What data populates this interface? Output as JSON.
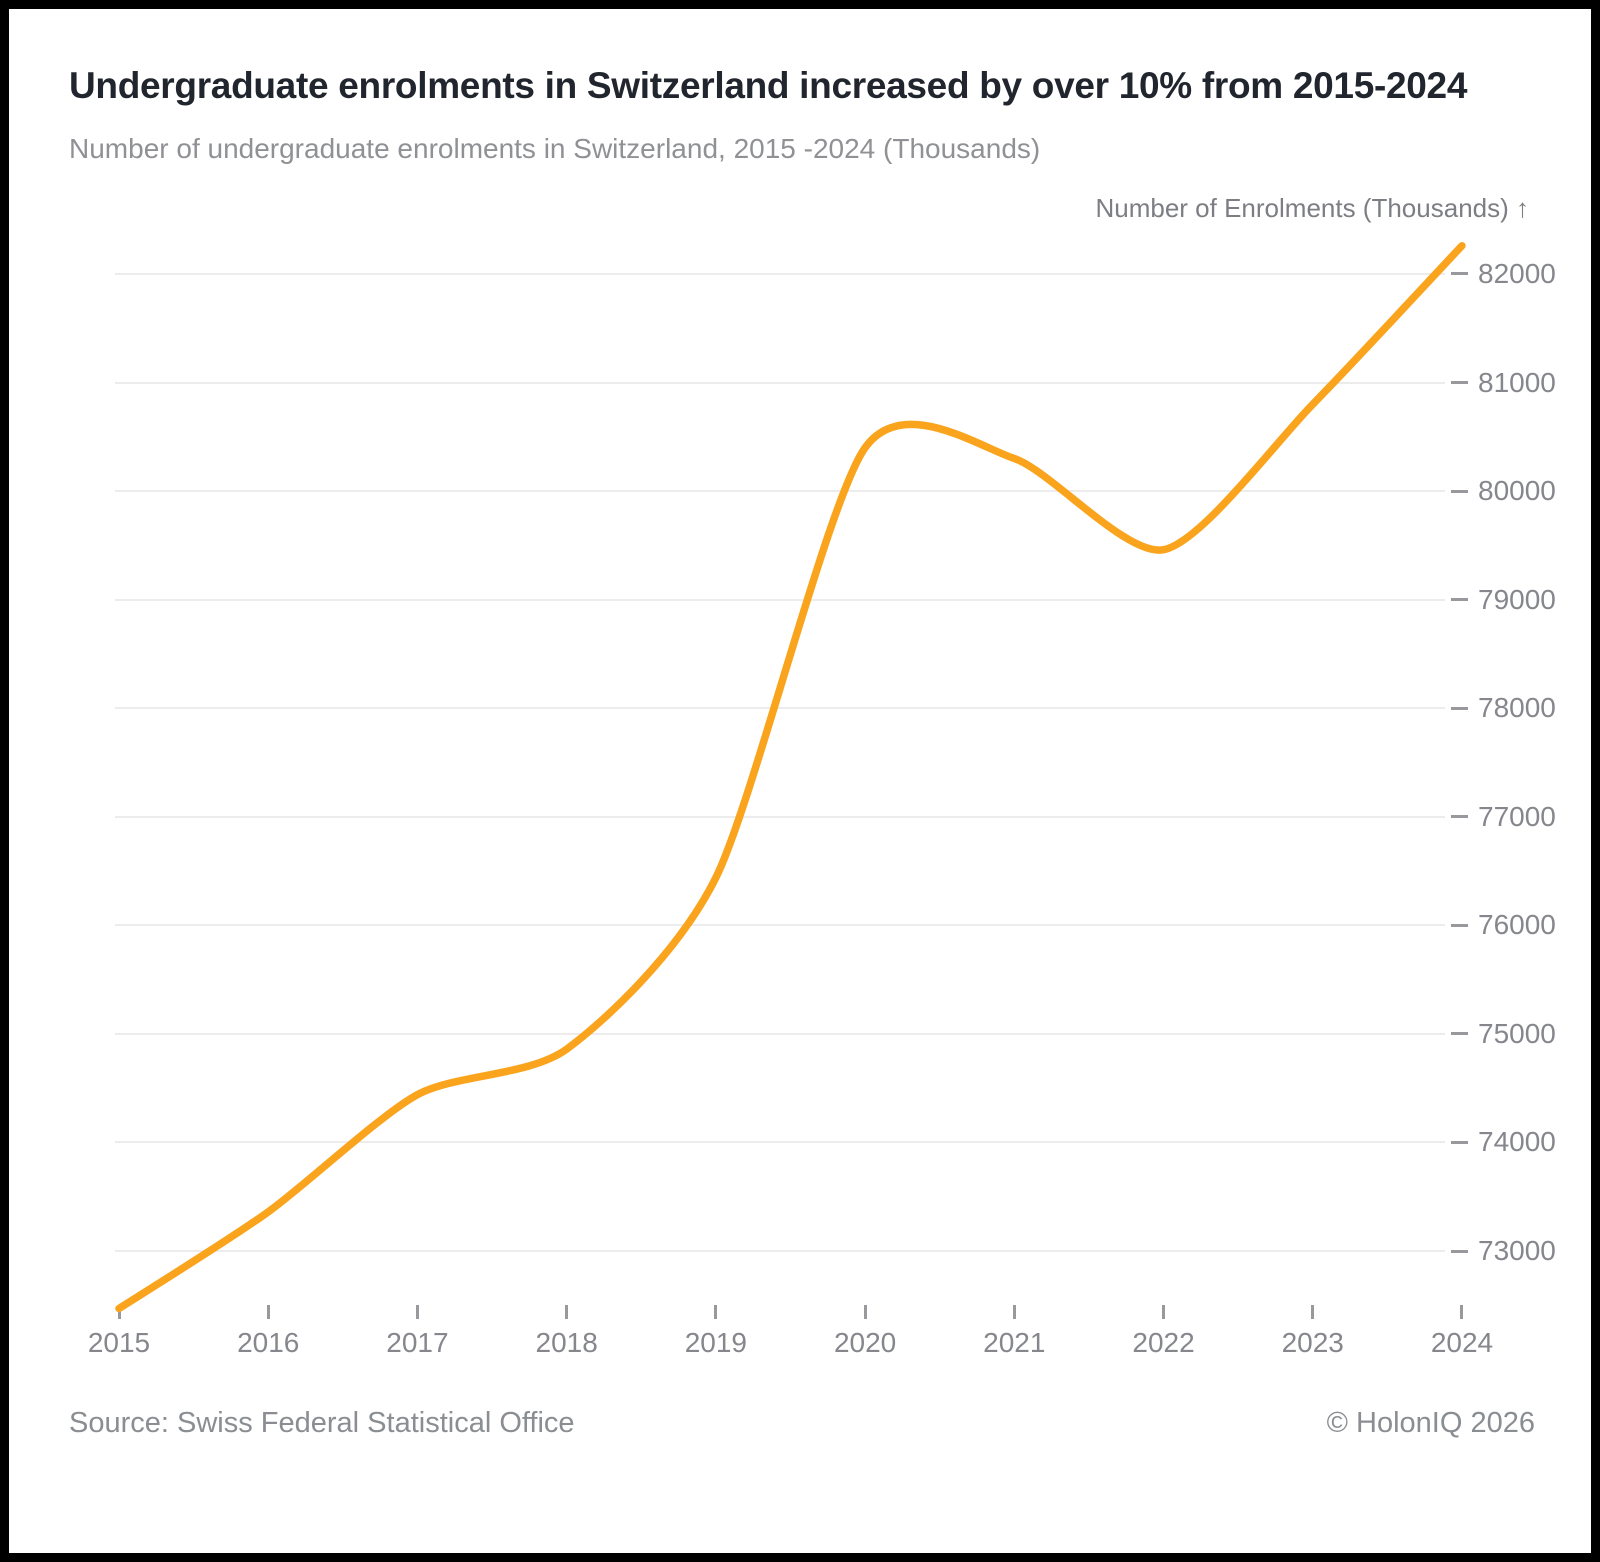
{
  "page": {
    "title": "Undergraduate enrolments in Switzerland increased by over 10% from 2015-2024",
    "subtitle": "Number of undergraduate enrolments in Switzerland, 2015 -2024 (Thousands)",
    "source": "Source: Swiss Federal Statistical Office",
    "copyright": "© HolonIQ 2026"
  },
  "chart_data": {
    "type": "line",
    "title": "Undergraduate enrolments in Switzerland increased by over 10% from 2015-2024",
    "subtitle": "Number of undergraduate enrolments in Switzerland, 2015 -2024 (Thousands)",
    "y_axis_title": "Number of Enrolments (Thousands) ↑",
    "categories": [
      "2015",
      "2016",
      "2017",
      "2018",
      "2019",
      "2020",
      "2021",
      "2022",
      "2023",
      "2024"
    ],
    "series": [
      {
        "name": "Number of undergraduate enrolments",
        "values": [
          72470,
          73360,
          74440,
          74860,
          76440,
          80400,
          80300,
          79460,
          80800,
          82260
        ]
      }
    ],
    "y_ticks": [
      73000,
      74000,
      75000,
      76000,
      77000,
      78000,
      79000,
      80000,
      81000,
      82000
    ],
    "ylim": [
      72400,
      82450
    ],
    "grid": "horizontal",
    "legend": "none",
    "line_color": "#F9A41C",
    "gridline_color": "#ececec"
  }
}
